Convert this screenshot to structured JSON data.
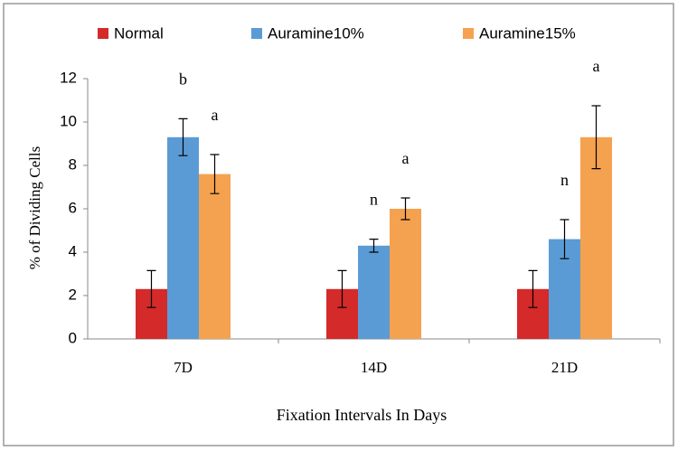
{
  "chart_data": {
    "type": "bar",
    "categories": [
      "7D",
      "14D",
      "21D"
    ],
    "series": [
      {
        "name": "Normal",
        "color": "#d42a2a",
        "values": [
          2.3,
          2.3,
          2.3
        ],
        "errors": [
          0.85,
          0.85,
          0.85
        ]
      },
      {
        "name": "Auramine10%",
        "color": "#5b9bd5",
        "values": [
          9.3,
          4.3,
          4.6
        ],
        "errors": [
          0.85,
          0.3,
          0.9
        ],
        "letters": [
          "b",
          "n",
          "n"
        ]
      },
      {
        "name": "Auramine15%",
        "color": "#f4a24f",
        "values": [
          7.6,
          6.0,
          9.3
        ],
        "errors": [
          0.9,
          0.5,
          1.45
        ],
        "letters": [
          "a",
          "a",
          "a"
        ]
      }
    ],
    "x_label": "Fixation Intervals In Days",
    "y_label": "% of Dividing Cells",
    "ylim": [
      0,
      12
    ],
    "yticks": [
      0,
      2,
      4,
      6,
      8,
      10,
      12
    ],
    "grid": false,
    "legend": "top"
  }
}
